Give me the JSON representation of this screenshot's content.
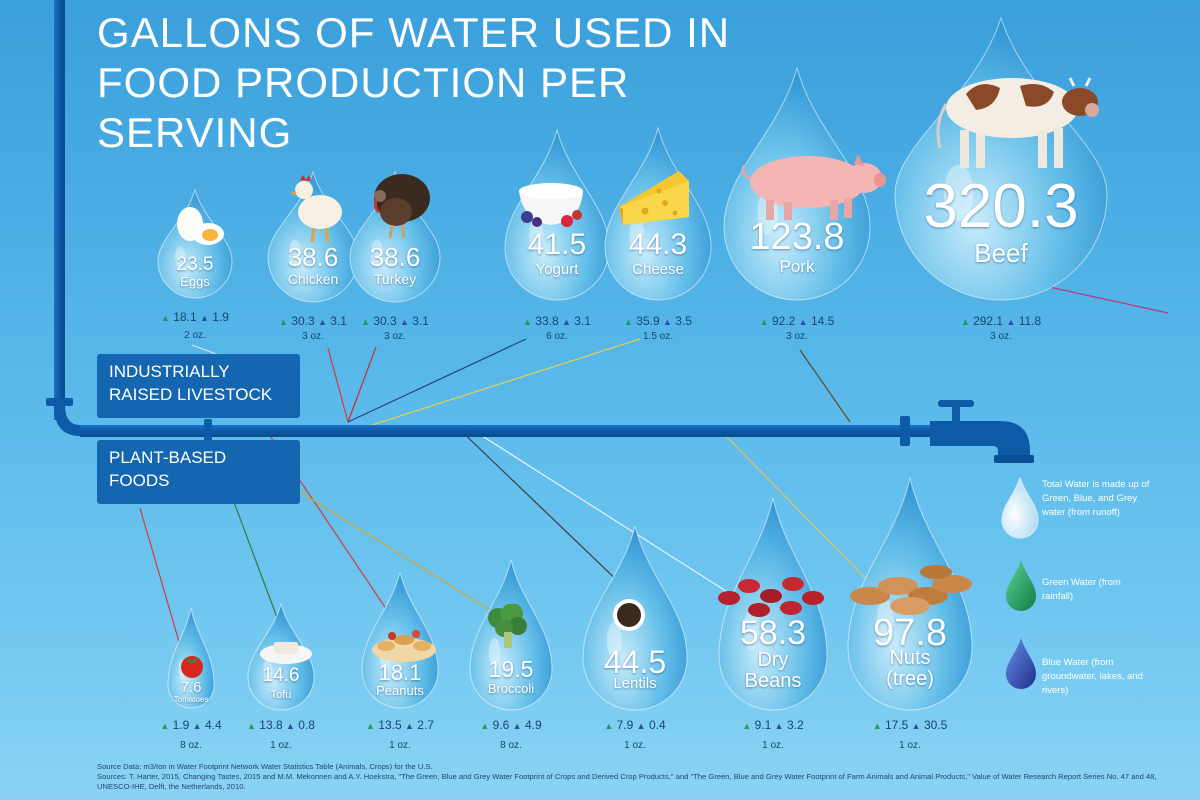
{
  "title": "GALLONS OF WATER USED IN FOOD PRODUCTION PER SERVING",
  "categories": {
    "livestock": "INDUSTRIALLY RAISED LIVESTOCK",
    "plant": "PLANT-BASED FOODS"
  },
  "legend": {
    "total": "Total Water is made up of Green, Blue, and Grey water (from runoff)",
    "green": "Green Water (from rainfall)",
    "blue": "Blue Water (from groundwater, lakes, and rivers)"
  },
  "sources": {
    "line1": "Source Data: m3/ton in Water Footprint Network Water Statistics Table (Animals, Crops) for the U.S.",
    "line2": "Sources:  T. Harter, 2015, Changing Tastes, 2015 and M.M. Mekonnen and A.Y. Hoekstra, \"The Green, Blue and Grey Water Footprint of Crops and Derived Crop Products,\" and \"The Green, Blue and Grey Water Footprint of Farm Animals and Animal Products,\" Value of Water Research Report Series No. 47 and 48, UNESCO-IHE, Delft, the Netherlands, 2010."
  },
  "colors": {
    "background_top": "#3a9fdb",
    "background_bottom": "#8ad3f4",
    "pipe": "#0d5aa7",
    "category_box": "#1466b0",
    "green_water": "#1a9c58",
    "blue_water": "#2a4fa0"
  },
  "chart_data": {
    "type": "bar",
    "units": "gallons per serving",
    "groups": [
      {
        "name": "INDUSTRIALLY RAISED LIVESTOCK",
        "items": [
          {
            "food": "Eggs",
            "total": "23.5",
            "green": "18.1",
            "blue": "1.9",
            "serving": "2 oz."
          },
          {
            "food": "Chicken",
            "total": "38.6",
            "green": "30.3",
            "blue": "3.1",
            "serving": "3 oz."
          },
          {
            "food": "Turkey",
            "total": "38.6",
            "green": "30.3",
            "blue": "3.1",
            "serving": "3 oz."
          },
          {
            "food": "Yogurt",
            "total": "41.5",
            "green": "33.8",
            "blue": "3.1",
            "serving": "6 oz."
          },
          {
            "food": "Cheese",
            "total": "44.3",
            "green": "35.9",
            "blue": "3.5",
            "serving": "1.5 oz."
          },
          {
            "food": "Pork",
            "total": "123.8",
            "green": "92.2",
            "blue": "14.5",
            "serving": "3 oz."
          },
          {
            "food": "Beef",
            "total": "320.3",
            "green": "292.1",
            "blue": "11.8",
            "serving": "3 oz."
          }
        ]
      },
      {
        "name": "PLANT-BASED FOODS",
        "items": [
          {
            "food": "Tomatoes",
            "total": "7.6",
            "green": "1.9",
            "blue": "4.4",
            "serving": "8 oz."
          },
          {
            "food": "Tofu",
            "total": "14.6",
            "green": "13.8",
            "blue": "0.8",
            "serving": "1 oz."
          },
          {
            "food": "Peanuts",
            "total": "18.1",
            "green": "13.5",
            "blue": "2.7",
            "serving": "1 oz."
          },
          {
            "food": "Broccoli",
            "total": "19.5",
            "green": "9.6",
            "blue": "4.9",
            "serving": "8 oz."
          },
          {
            "food": "Lentils",
            "total": "44.5",
            "green": "7.9",
            "blue": "0.4",
            "serving": "1 oz."
          },
          {
            "food": "Dry\nBeans",
            "total": "58.3",
            "green": "9.1",
            "blue": "3.2",
            "serving": "1 oz."
          },
          {
            "food": "Nuts\n(tree)",
            "total": "97.8",
            "green": "17.5",
            "blue": "30.5",
            "serving": "1 oz."
          }
        ]
      }
    ]
  }
}
